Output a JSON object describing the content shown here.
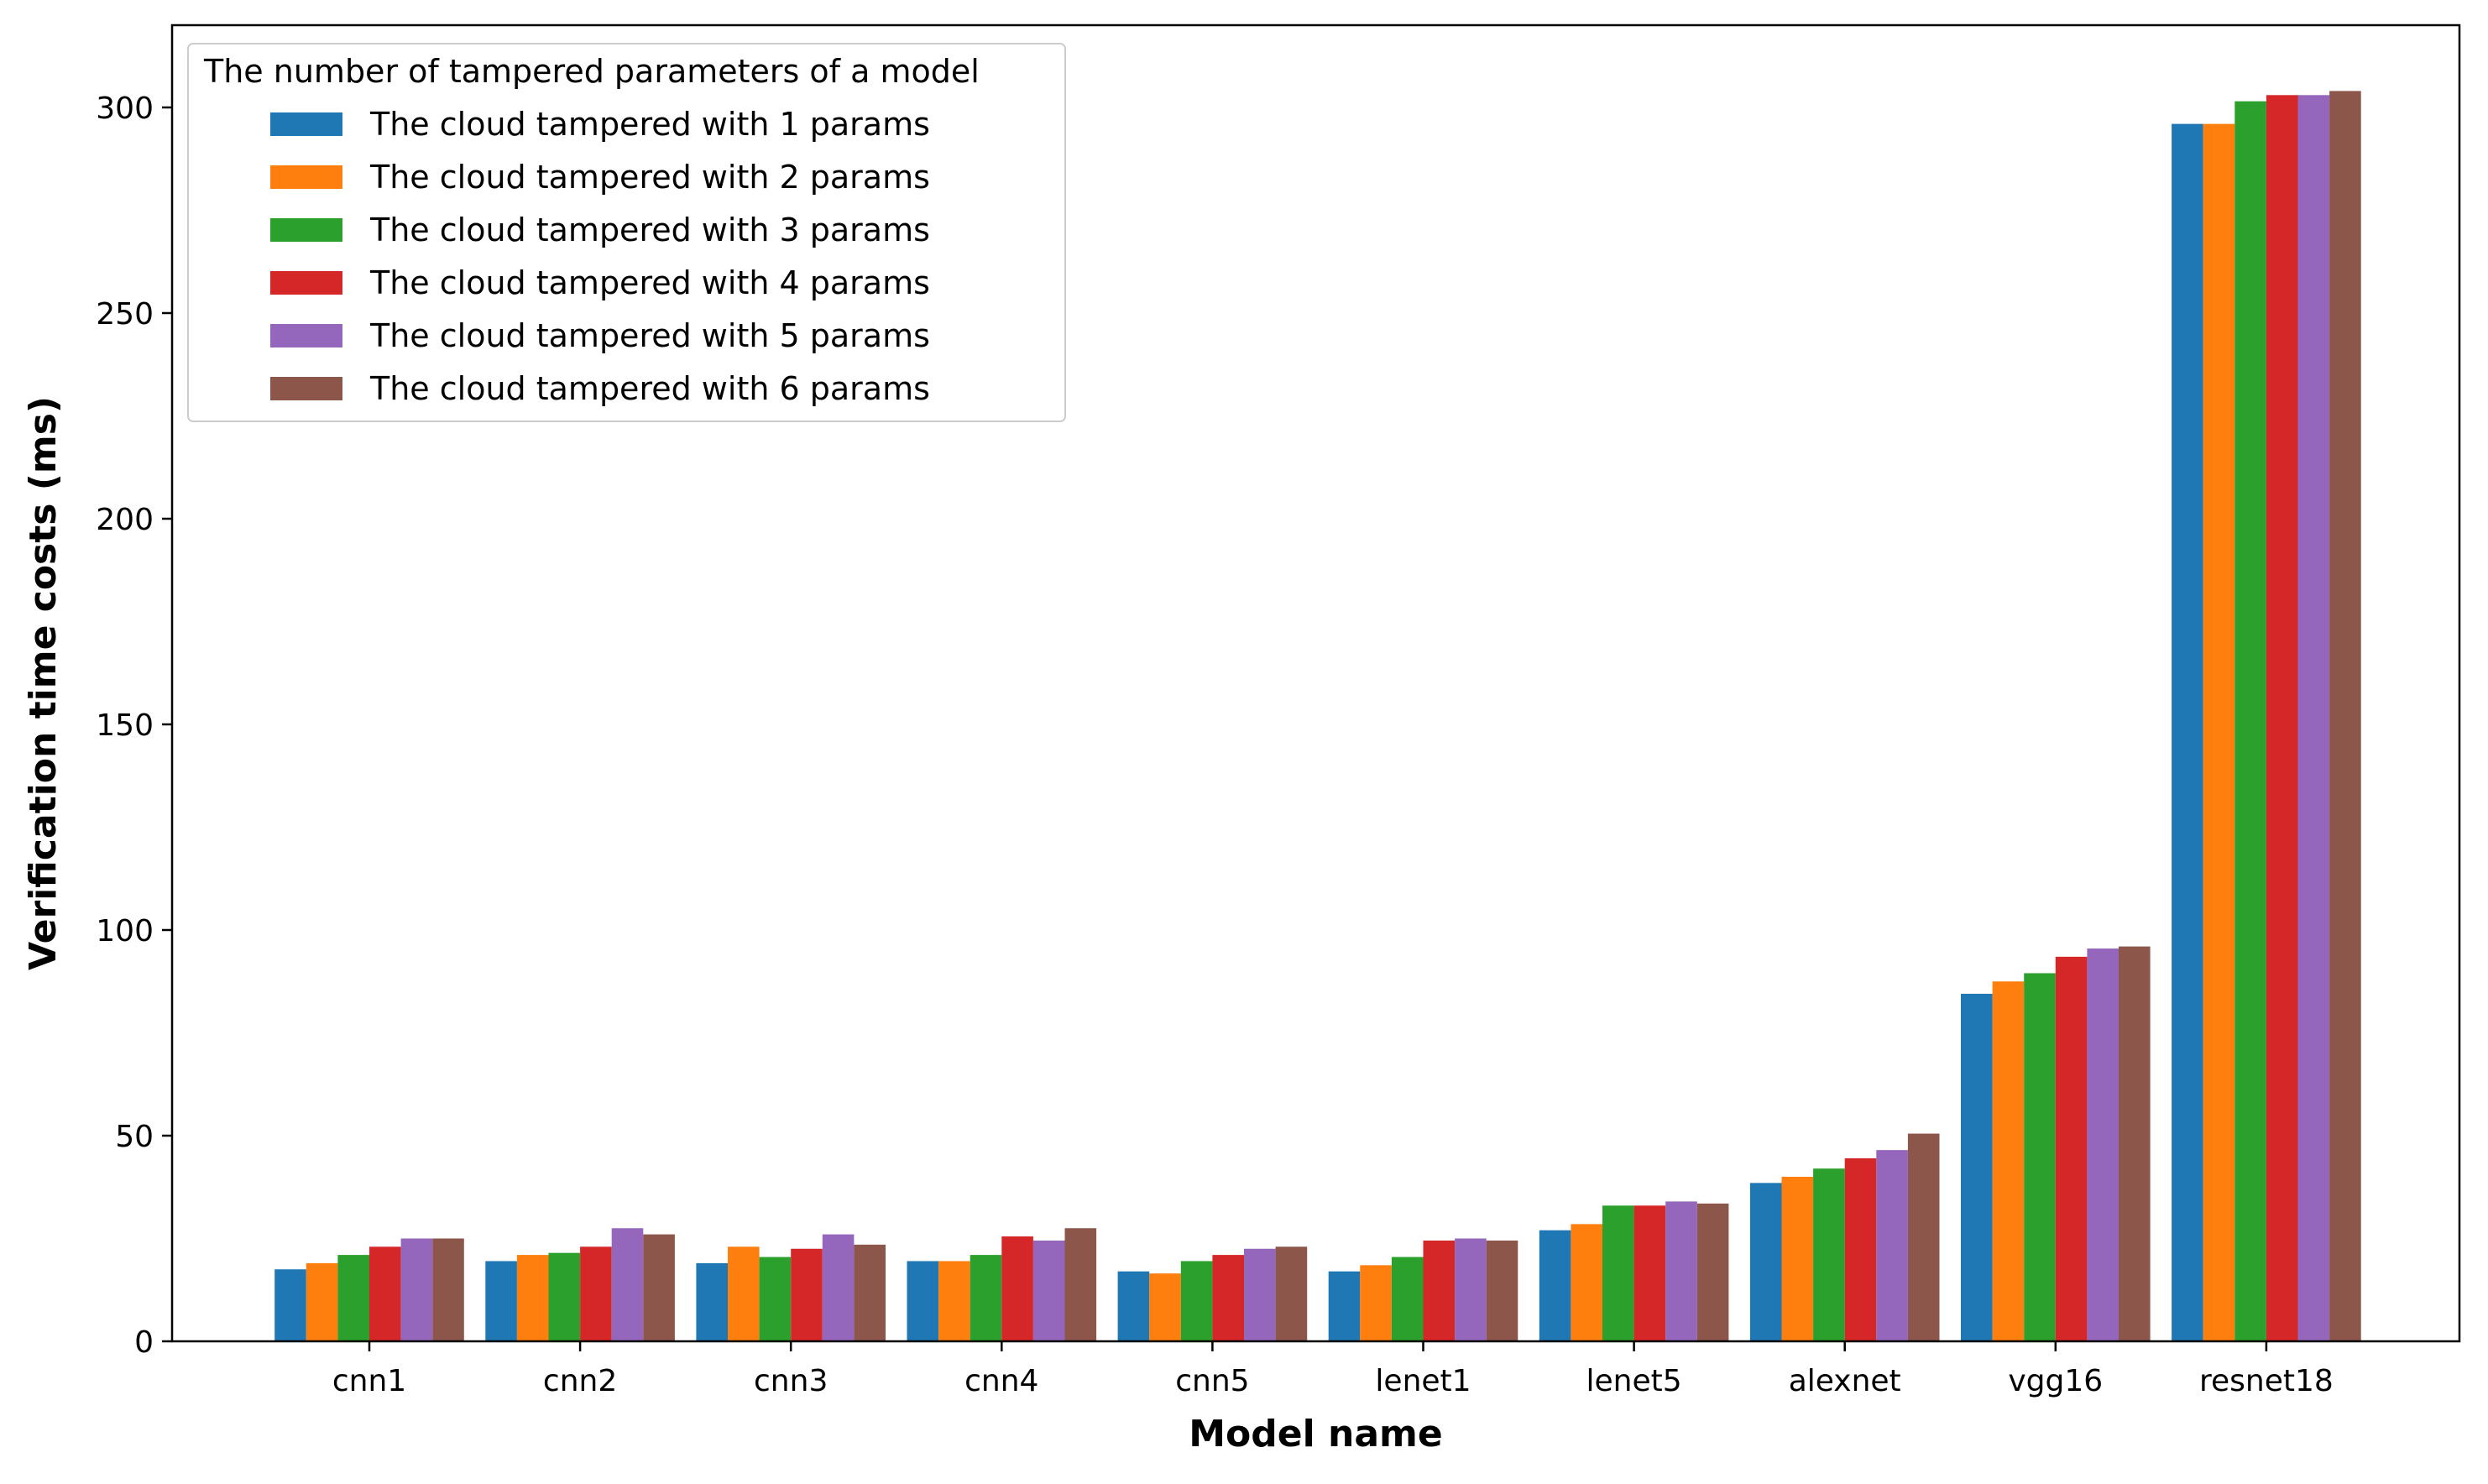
{
  "chart_data": {
    "type": "bar",
    "xlabel": "Model name",
    "ylabel": "Verification time costs (ms)",
    "ylim": [
      0,
      320
    ],
    "yticks": [
      0,
      50,
      100,
      150,
      200,
      250,
      300
    ],
    "grid": false,
    "legend_title": "The number of tampered parameters of a model",
    "legend_position": "top-left",
    "categories": [
      "cnn1",
      "cnn2",
      "cnn3",
      "cnn4",
      "cnn5",
      "lenet1",
      "lenet5",
      "alexnet",
      "vgg16",
      "resnet18"
    ],
    "series": [
      {
        "name": "The cloud tampered with 1 params",
        "color": "#1f77b4",
        "values": [
          17.5,
          19.5,
          19.0,
          19.5,
          17.0,
          17.0,
          27.0,
          38.5,
          84.5,
          296.0
        ]
      },
      {
        "name": "The cloud tampered with 2 params",
        "color": "#ff7f0e",
        "values": [
          19.0,
          21.0,
          23.0,
          19.5,
          16.5,
          18.5,
          28.5,
          40.0,
          87.5,
          296.0
        ]
      },
      {
        "name": "The cloud tampered with 3 params",
        "color": "#2ca02c",
        "values": [
          21.0,
          21.5,
          20.5,
          21.0,
          19.5,
          20.5,
          33.0,
          42.0,
          89.5,
          301.5
        ]
      },
      {
        "name": "The cloud tampered with 4 params",
        "color": "#d62728",
        "values": [
          23.0,
          23.0,
          22.5,
          25.5,
          21.0,
          24.5,
          33.0,
          44.5,
          93.5,
          303.0
        ]
      },
      {
        "name": "The cloud tampered with 5 params",
        "color": "#9467bd",
        "values": [
          25.0,
          27.5,
          26.0,
          24.5,
          22.5,
          25.0,
          34.0,
          46.5,
          95.5,
          303.0
        ]
      },
      {
        "name": "The cloud tampered with 6 params",
        "color": "#8c564b",
        "values": [
          25.0,
          26.0,
          23.5,
          27.5,
          23.0,
          24.5,
          33.5,
          50.5,
          96.0,
          304.0
        ]
      }
    ]
  }
}
